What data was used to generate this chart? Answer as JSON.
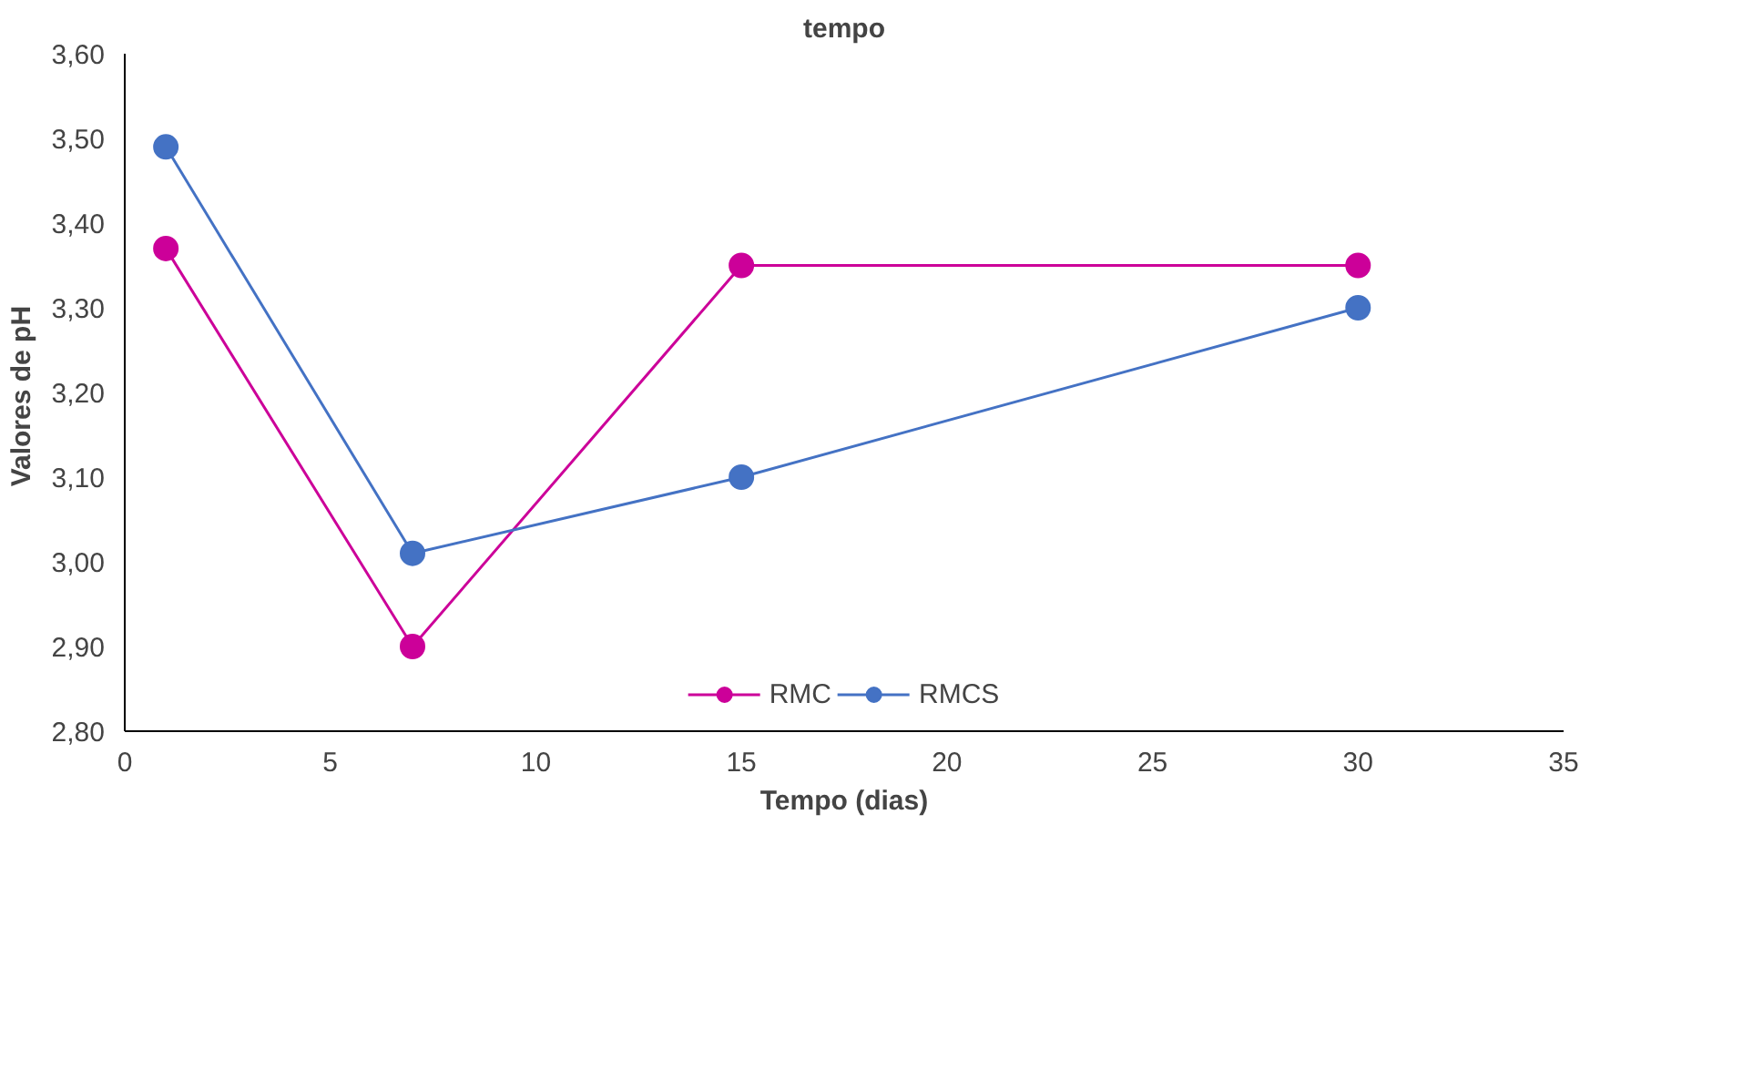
{
  "chart_data": {
    "type": "line",
    "title": "tempo",
    "xlabel": "Tempo (dias)",
    "ylabel": "Valores  de pH",
    "x": [
      1,
      7,
      15,
      30
    ],
    "series": [
      {
        "name": "RMC",
        "color": "#cc0099",
        "values": [
          3.37,
          2.9,
          3.35,
          3.35
        ]
      },
      {
        "name": "RMCS",
        "color": "#4472c4",
        "values": [
          3.49,
          3.01,
          3.1,
          3.3
        ]
      }
    ],
    "xlim": [
      0,
      35
    ],
    "xticks": [
      0,
      5,
      10,
      15,
      20,
      25,
      30,
      35
    ],
    "ylim": [
      2.8,
      3.6
    ],
    "yticks": [
      {
        "value": 2.8,
        "label": "2,80"
      },
      {
        "value": 2.9,
        "label": "2,90"
      },
      {
        "value": 3.0,
        "label": "3,00"
      },
      {
        "value": 3.1,
        "label": "3,10"
      },
      {
        "value": 3.2,
        "label": "3,20"
      },
      {
        "value": 3.3,
        "label": "3,30"
      },
      {
        "value": 3.4,
        "label": "3,40"
      },
      {
        "value": 3.5,
        "label": "3,50"
      },
      {
        "value": 3.6,
        "label": "3,60"
      }
    ],
    "grid": false,
    "legend": "bottom",
    "marker": "circle",
    "line_style": "solid"
  }
}
